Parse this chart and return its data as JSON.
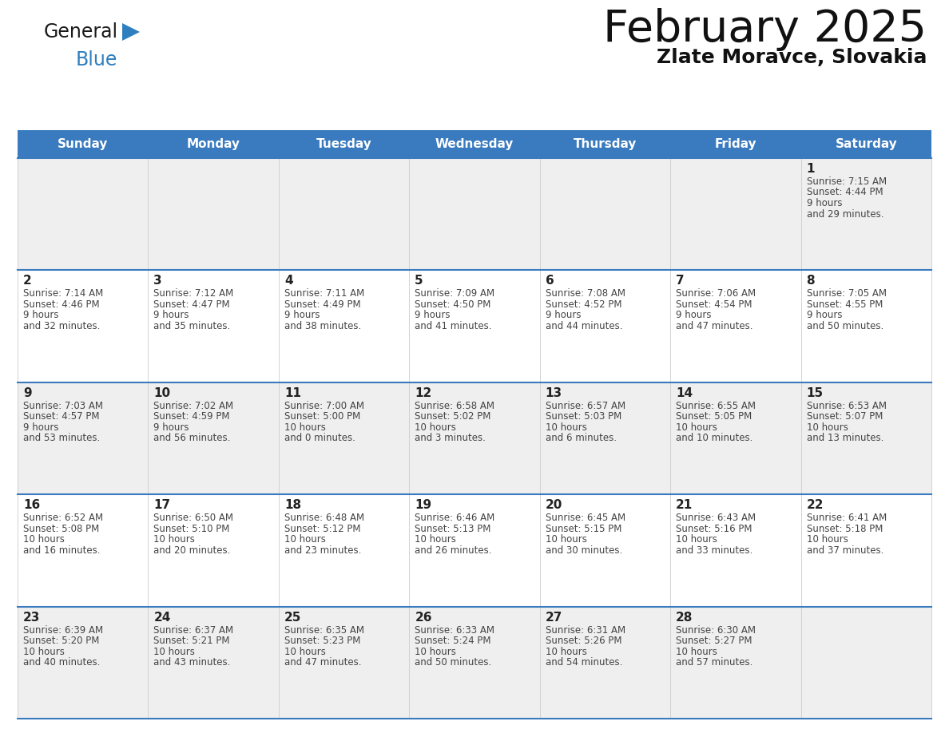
{
  "title": "February 2025",
  "subtitle": "Zlate Moravce, Slovakia",
  "days_of_week": [
    "Sunday",
    "Monday",
    "Tuesday",
    "Wednesday",
    "Thursday",
    "Friday",
    "Saturday"
  ],
  "header_bg": "#3a7bbf",
  "header_text": "#ffffff",
  "row_bg_odd": "#efefef",
  "row_bg_even": "#ffffff",
  "border_color": "#3a7bbf",
  "cell_border_color": "#cccccc",
  "day_number_color": "#222222",
  "info_text_color": "#444444",
  "calendar_data": [
    [
      null,
      null,
      null,
      null,
      null,
      null,
      {
        "day": 1,
        "sunrise": "7:15 AM",
        "sunset": "4:44 PM",
        "daylight": "9 hours\nand 29 minutes."
      }
    ],
    [
      {
        "day": 2,
        "sunrise": "7:14 AM",
        "sunset": "4:46 PM",
        "daylight": "9 hours\nand 32 minutes."
      },
      {
        "day": 3,
        "sunrise": "7:12 AM",
        "sunset": "4:47 PM",
        "daylight": "9 hours\nand 35 minutes."
      },
      {
        "day": 4,
        "sunrise": "7:11 AM",
        "sunset": "4:49 PM",
        "daylight": "9 hours\nand 38 minutes."
      },
      {
        "day": 5,
        "sunrise": "7:09 AM",
        "sunset": "4:50 PM",
        "daylight": "9 hours\nand 41 minutes."
      },
      {
        "day": 6,
        "sunrise": "7:08 AM",
        "sunset": "4:52 PM",
        "daylight": "9 hours\nand 44 minutes."
      },
      {
        "day": 7,
        "sunrise": "7:06 AM",
        "sunset": "4:54 PM",
        "daylight": "9 hours\nand 47 minutes."
      },
      {
        "day": 8,
        "sunrise": "7:05 AM",
        "sunset": "4:55 PM",
        "daylight": "9 hours\nand 50 minutes."
      }
    ],
    [
      {
        "day": 9,
        "sunrise": "7:03 AM",
        "sunset": "4:57 PM",
        "daylight": "9 hours\nand 53 minutes."
      },
      {
        "day": 10,
        "sunrise": "7:02 AM",
        "sunset": "4:59 PM",
        "daylight": "9 hours\nand 56 minutes."
      },
      {
        "day": 11,
        "sunrise": "7:00 AM",
        "sunset": "5:00 PM",
        "daylight": "10 hours\nand 0 minutes."
      },
      {
        "day": 12,
        "sunrise": "6:58 AM",
        "sunset": "5:02 PM",
        "daylight": "10 hours\nand 3 minutes."
      },
      {
        "day": 13,
        "sunrise": "6:57 AM",
        "sunset": "5:03 PM",
        "daylight": "10 hours\nand 6 minutes."
      },
      {
        "day": 14,
        "sunrise": "6:55 AM",
        "sunset": "5:05 PM",
        "daylight": "10 hours\nand 10 minutes."
      },
      {
        "day": 15,
        "sunrise": "6:53 AM",
        "sunset": "5:07 PM",
        "daylight": "10 hours\nand 13 minutes."
      }
    ],
    [
      {
        "day": 16,
        "sunrise": "6:52 AM",
        "sunset": "5:08 PM",
        "daylight": "10 hours\nand 16 minutes."
      },
      {
        "day": 17,
        "sunrise": "6:50 AM",
        "sunset": "5:10 PM",
        "daylight": "10 hours\nand 20 minutes."
      },
      {
        "day": 18,
        "sunrise": "6:48 AM",
        "sunset": "5:12 PM",
        "daylight": "10 hours\nand 23 minutes."
      },
      {
        "day": 19,
        "sunrise": "6:46 AM",
        "sunset": "5:13 PM",
        "daylight": "10 hours\nand 26 minutes."
      },
      {
        "day": 20,
        "sunrise": "6:45 AM",
        "sunset": "5:15 PM",
        "daylight": "10 hours\nand 30 minutes."
      },
      {
        "day": 21,
        "sunrise": "6:43 AM",
        "sunset": "5:16 PM",
        "daylight": "10 hours\nand 33 minutes."
      },
      {
        "day": 22,
        "sunrise": "6:41 AM",
        "sunset": "5:18 PM",
        "daylight": "10 hours\nand 37 minutes."
      }
    ],
    [
      {
        "day": 23,
        "sunrise": "6:39 AM",
        "sunset": "5:20 PM",
        "daylight": "10 hours\nand 40 minutes."
      },
      {
        "day": 24,
        "sunrise": "6:37 AM",
        "sunset": "5:21 PM",
        "daylight": "10 hours\nand 43 minutes."
      },
      {
        "day": 25,
        "sunrise": "6:35 AM",
        "sunset": "5:23 PM",
        "daylight": "10 hours\nand 47 minutes."
      },
      {
        "day": 26,
        "sunrise": "6:33 AM",
        "sunset": "5:24 PM",
        "daylight": "10 hours\nand 50 minutes."
      },
      {
        "day": 27,
        "sunrise": "6:31 AM",
        "sunset": "5:26 PM",
        "daylight": "10 hours\nand 54 minutes."
      },
      {
        "day": 28,
        "sunrise": "6:30 AM",
        "sunset": "5:27 PM",
        "daylight": "10 hours\nand 57 minutes."
      },
      null
    ]
  ],
  "logo_text_color": "#1a1a1a",
  "logo_blue_color": "#2e7fc0",
  "logo_triangle_color": "#2e7fc0",
  "title_fontsize": 40,
  "subtitle_fontsize": 18,
  "header_fontsize": 11,
  "day_num_fontsize": 11,
  "cell_text_fontsize": 8.5
}
